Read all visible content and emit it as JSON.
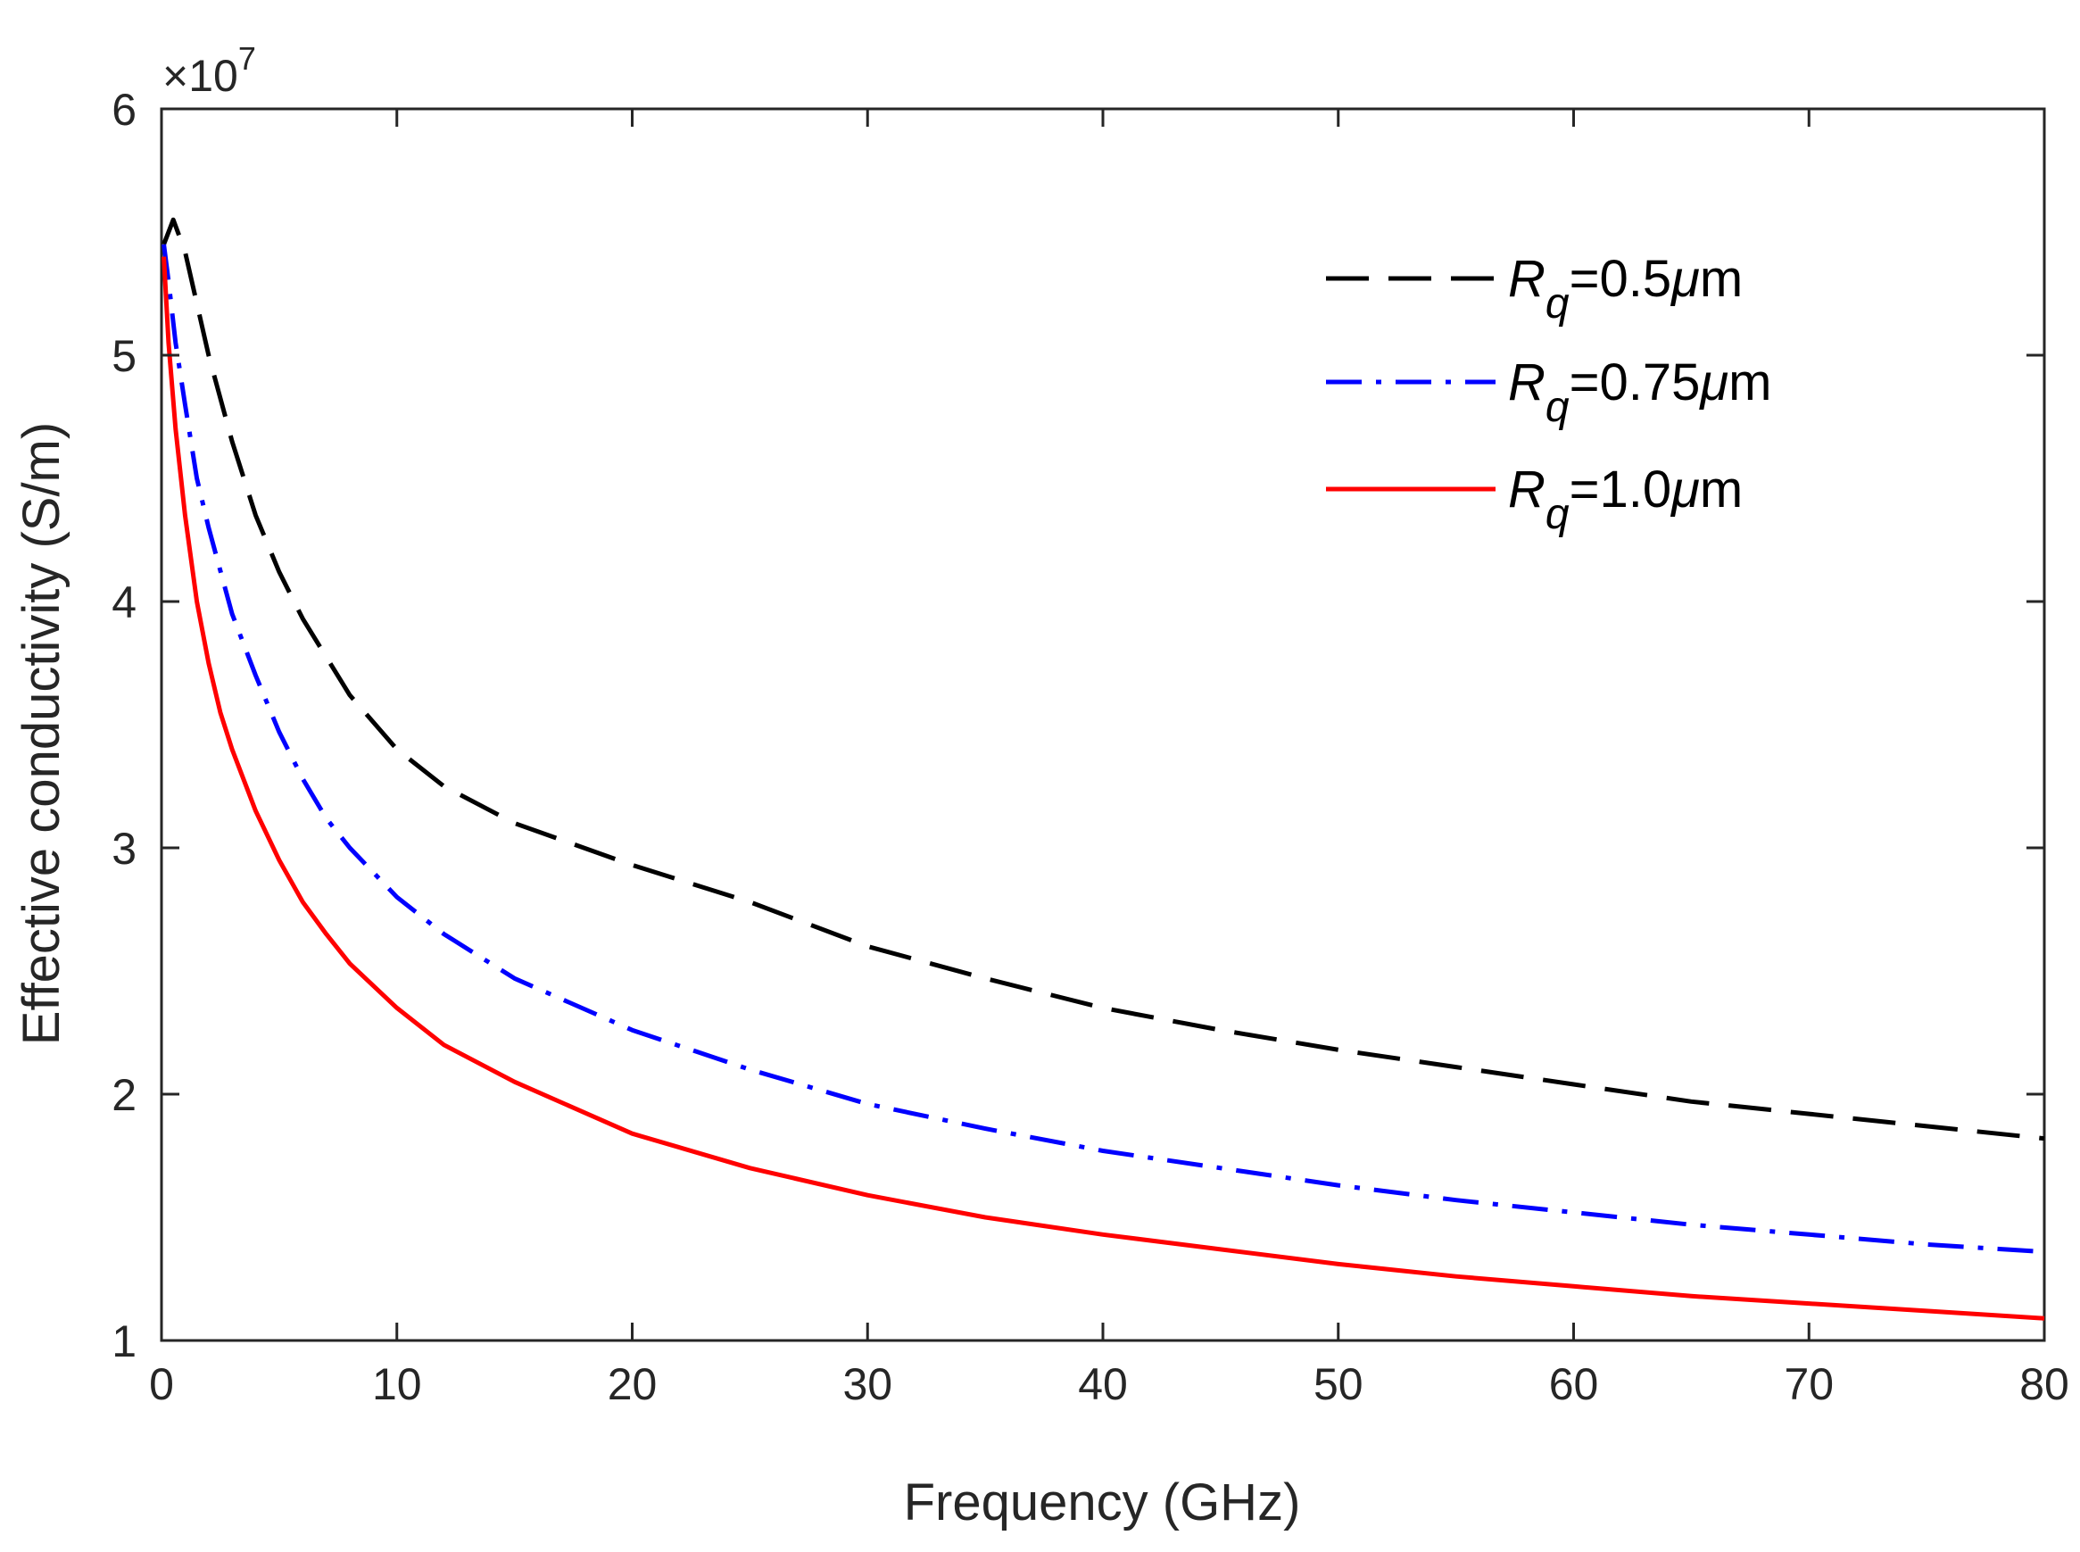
{
  "chart_data": {
    "type": "line",
    "xlabel": "Frequency (GHz)",
    "ylabel": "Effective conductivity (S/m)",
    "xlim": [
      0,
      80
    ],
    "ylim": [
      1,
      6
    ],
    "y_scale_factor": {
      "base": "×10",
      "exponent": "7"
    },
    "xticks": [
      0,
      10,
      20,
      30,
      40,
      50,
      60,
      70,
      80
    ],
    "yticks": [
      1,
      2,
      3,
      4,
      5,
      6
    ],
    "grid": false,
    "legend_position": "top-right",
    "series": [
      {
        "name": "Rq=0.5μm",
        "legend": {
          "r": "R",
          "sub": "q",
          "eq": "=0.5",
          "mu": "μ",
          "unit": "m"
        },
        "color": "#000000",
        "style": "dashed",
        "x": [
          0.1,
          0.5,
          1,
          2,
          3,
          4,
          5,
          6,
          8,
          10,
          12,
          15,
          20,
          25,
          30,
          35,
          40,
          45,
          50,
          55,
          60,
          65,
          70,
          75,
          80
        ],
        "y": [
          5.45,
          5.55,
          5.42,
          5.0,
          4.65,
          4.35,
          4.12,
          3.93,
          3.62,
          3.4,
          3.25,
          3.1,
          2.93,
          2.78,
          2.6,
          2.47,
          2.35,
          2.26,
          2.18,
          2.11,
          2.04,
          1.97,
          1.92,
          1.87,
          1.82
        ]
      },
      {
        "name": "Rq=0.75μm",
        "legend": {
          "r": "R",
          "sub": "q",
          "eq": "=0.75",
          "mu": "μ",
          "unit": "m"
        },
        "color": "#0000ff",
        "style": "dashdot",
        "x": [
          0.1,
          0.3,
          0.6,
          1,
          1.5,
          2,
          3,
          4,
          5,
          6,
          7,
          8,
          10,
          12,
          15,
          20,
          25,
          30,
          35,
          40,
          45,
          50,
          55,
          60,
          65,
          70,
          75,
          80
        ],
        "y": [
          5.45,
          5.3,
          5.05,
          4.8,
          4.5,
          4.3,
          3.95,
          3.7,
          3.47,
          3.28,
          3.12,
          3.0,
          2.8,
          2.65,
          2.47,
          2.26,
          2.1,
          1.96,
          1.86,
          1.77,
          1.7,
          1.63,
          1.57,
          1.52,
          1.47,
          1.43,
          1.39,
          1.36
        ]
      },
      {
        "name": "Rq=1.0μm",
        "legend": {
          "r": "R",
          "sub": "q",
          "eq": "=1.0",
          "mu": "μ",
          "unit": "m"
        },
        "color": "#ff0000",
        "style": "solid",
        "x": [
          0.1,
          0.3,
          0.6,
          1,
          1.5,
          2,
          2.5,
          3,
          4,
          5,
          6,
          7,
          8,
          10,
          12,
          15,
          20,
          25,
          30,
          35,
          40,
          45,
          50,
          55,
          60,
          65,
          70,
          75,
          80
        ],
        "y": [
          5.4,
          5.05,
          4.7,
          4.35,
          4.0,
          3.75,
          3.55,
          3.4,
          3.15,
          2.95,
          2.78,
          2.65,
          2.53,
          2.35,
          2.2,
          2.05,
          1.84,
          1.7,
          1.59,
          1.5,
          1.43,
          1.37,
          1.31,
          1.26,
          1.22,
          1.18,
          1.15,
          1.12,
          1.09
        ]
      }
    ]
  }
}
